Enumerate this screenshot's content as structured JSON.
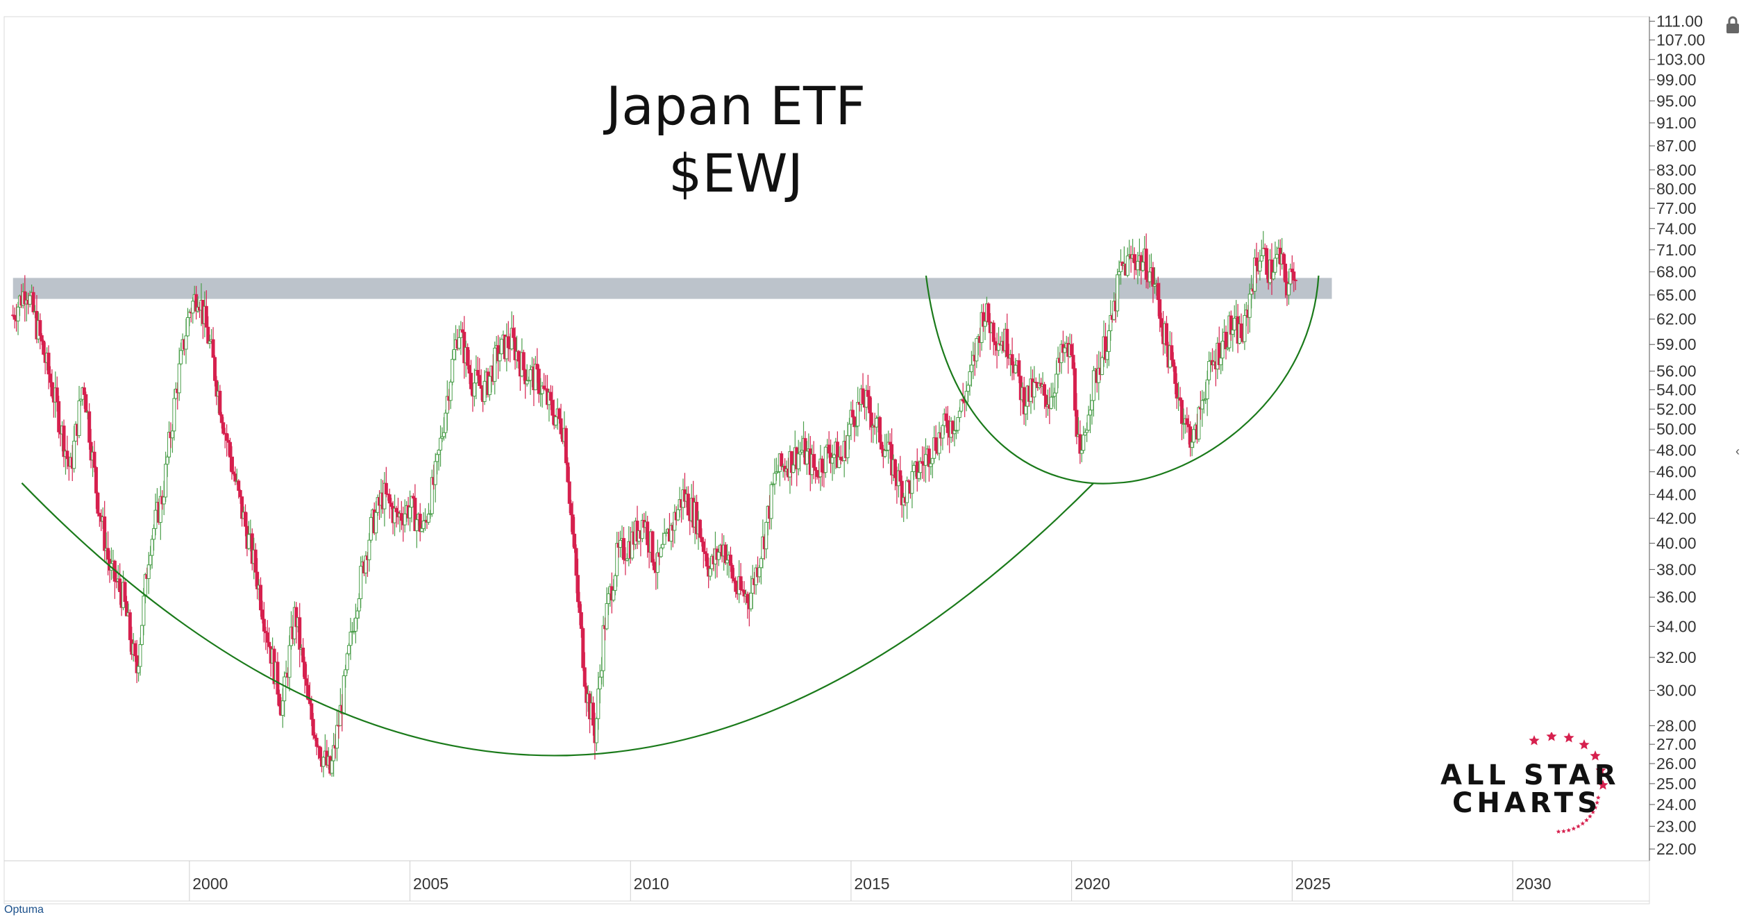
{
  "title": {
    "line1": "Japan ETF",
    "line2": "$EWJ"
  },
  "chart_data": {
    "type": "candlestick",
    "title": "Japan ETF $EWJ",
    "xlabel": "",
    "ylabel": "",
    "y_scale": "log",
    "ylim": [
      21.5,
      112
    ],
    "xlim": [
      1995.8,
      2033.1
    ],
    "x_ticks": [
      "2000",
      "2005",
      "2010",
      "2015",
      "2020",
      "2025",
      "2030"
    ],
    "y_ticks": [
      "111.00",
      "107.00",
      "103.00",
      "99.00",
      "95.00",
      "91.00",
      "87.00",
      "83.00",
      "80.00",
      "77.00",
      "74.00",
      "71.00",
      "68.00",
      "65.00",
      "62.00",
      "59.00",
      "56.00",
      "54.00",
      "52.00",
      "50.00",
      "48.00",
      "46.00",
      "44.00",
      "42.00",
      "40.00",
      "38.00",
      "36.00",
      "34.00",
      "32.00",
      "30.00",
      "28.00",
      "27.00",
      "26.00",
      "25.00",
      "24.00",
      "23.00",
      "22.00"
    ],
    "resistance_band": {
      "low": 64.5,
      "high": 67.2,
      "from_year": 1996.0,
      "to_year": 2025.9,
      "color": "#b8c0c8"
    },
    "up_color": "#4a9e4a",
    "down_color": "#d6204e",
    "annotation_color": "#1a7a1a",
    "price_series": [
      [
        1996.0,
        62.5
      ],
      [
        1996.3,
        66.0
      ],
      [
        1996.6,
        60.0
      ],
      [
        1997.0,
        52.0
      ],
      [
        1997.3,
        46.0
      ],
      [
        1997.6,
        55.0
      ],
      [
        1997.9,
        44.0
      ],
      [
        1998.2,
        38.0
      ],
      [
        1998.5,
        36.0
      ],
      [
        1998.8,
        31.0
      ],
      [
        1999.1,
        40.0
      ],
      [
        1999.4,
        44.0
      ],
      [
        1999.7,
        54.0
      ],
      [
        2000.0,
        63.0
      ],
      [
        2000.2,
        65.5
      ],
      [
        2000.5,
        58.0
      ],
      [
        2000.8,
        50.0
      ],
      [
        2001.1,
        44.0
      ],
      [
        2001.5,
        38.0
      ],
      [
        2001.8,
        33.0
      ],
      [
        2002.1,
        29.0
      ],
      [
        2002.4,
        35.0
      ],
      [
        2002.7,
        29.0
      ],
      [
        2003.0,
        26.5
      ],
      [
        2003.2,
        25.5
      ],
      [
        2003.5,
        30.0
      ],
      [
        2003.8,
        36.0
      ],
      [
        2004.1,
        41.0
      ],
      [
        2004.4,
        44.0
      ],
      [
        2004.7,
        42.0
      ],
      [
        2005.0,
        43.0
      ],
      [
        2005.3,
        41.0
      ],
      [
        2005.6,
        46.0
      ],
      [
        2005.9,
        55.0
      ],
      [
        2006.1,
        61.0
      ],
      [
        2006.4,
        55.0
      ],
      [
        2006.7,
        54.0
      ],
      [
        2007.0,
        58.0
      ],
      [
        2007.3,
        59.5
      ],
      [
        2007.6,
        56.0
      ],
      [
        2007.9,
        55.0
      ],
      [
        2008.2,
        52.0
      ],
      [
        2008.5,
        50.0
      ],
      [
        2008.8,
        36.0
      ],
      [
        2009.0,
        30.0
      ],
      [
        2009.2,
        27.5
      ],
      [
        2009.4,
        34.0
      ],
      [
        2009.7,
        39.0
      ],
      [
        2010.0,
        40.0
      ],
      [
        2010.3,
        42.0
      ],
      [
        2010.6,
        38.0
      ],
      [
        2010.9,
        41.0
      ],
      [
        2011.2,
        44.0
      ],
      [
        2011.5,
        42.0
      ],
      [
        2011.8,
        38.0
      ],
      [
        2012.1,
        40.0
      ],
      [
        2012.4,
        36.5
      ],
      [
        2012.7,
        36.0
      ],
      [
        2013.0,
        40.0
      ],
      [
        2013.3,
        46.0
      ],
      [
        2013.6,
        47.0
      ],
      [
        2013.9,
        48.0
      ],
      [
        2014.2,
        46.0
      ],
      [
        2014.5,
        48.0
      ],
      [
        2014.8,
        47.0
      ],
      [
        2015.0,
        51.0
      ],
      [
        2015.3,
        53.0
      ],
      [
        2015.6,
        50.0
      ],
      [
        2015.9,
        47.0
      ],
      [
        2016.2,
        44.0
      ],
      [
        2016.5,
        46.0
      ],
      [
        2016.8,
        48.0
      ],
      [
        2017.1,
        50.0
      ],
      [
        2017.4,
        51.0
      ],
      [
        2017.7,
        55.0
      ],
      [
        2018.0,
        63.0
      ],
      [
        2018.3,
        60.0
      ],
      [
        2018.6,
        59.0
      ],
      [
        2018.9,
        53.0
      ],
      [
        2019.2,
        54.0
      ],
      [
        2019.5,
        53.0
      ],
      [
        2019.8,
        58.0
      ],
      [
        2020.0,
        58.0
      ],
      [
        2020.2,
        46.0
      ],
      [
        2020.4,
        53.0
      ],
      [
        2020.7,
        58.0
      ],
      [
        2020.9,
        61.0
      ],
      [
        2021.1,
        68.0
      ],
      [
        2021.4,
        70.0
      ],
      [
        2021.7,
        69.0
      ],
      [
        2021.9,
        66.0
      ],
      [
        2022.1,
        60.0
      ],
      [
        2022.4,
        54.0
      ],
      [
        2022.6,
        50.0
      ],
      [
        2022.8,
        49.0
      ],
      [
        2023.0,
        54.0
      ],
      [
        2023.3,
        58.0
      ],
      [
        2023.6,
        61.0
      ],
      [
        2023.9,
        60.0
      ],
      [
        2024.1,
        67.0
      ],
      [
        2024.3,
        71.0
      ],
      [
        2024.5,
        68.0
      ],
      [
        2024.7,
        70.0
      ],
      [
        2024.9,
        66.0
      ],
      [
        2025.1,
        69.0
      ]
    ]
  },
  "logo": {
    "line1": "ALL STAR",
    "line2": "CHARTS"
  },
  "footer": {
    "brand": "Optuma"
  },
  "icons": {
    "lock": "lock-icon",
    "collapse": "chevron-left-icon"
  }
}
